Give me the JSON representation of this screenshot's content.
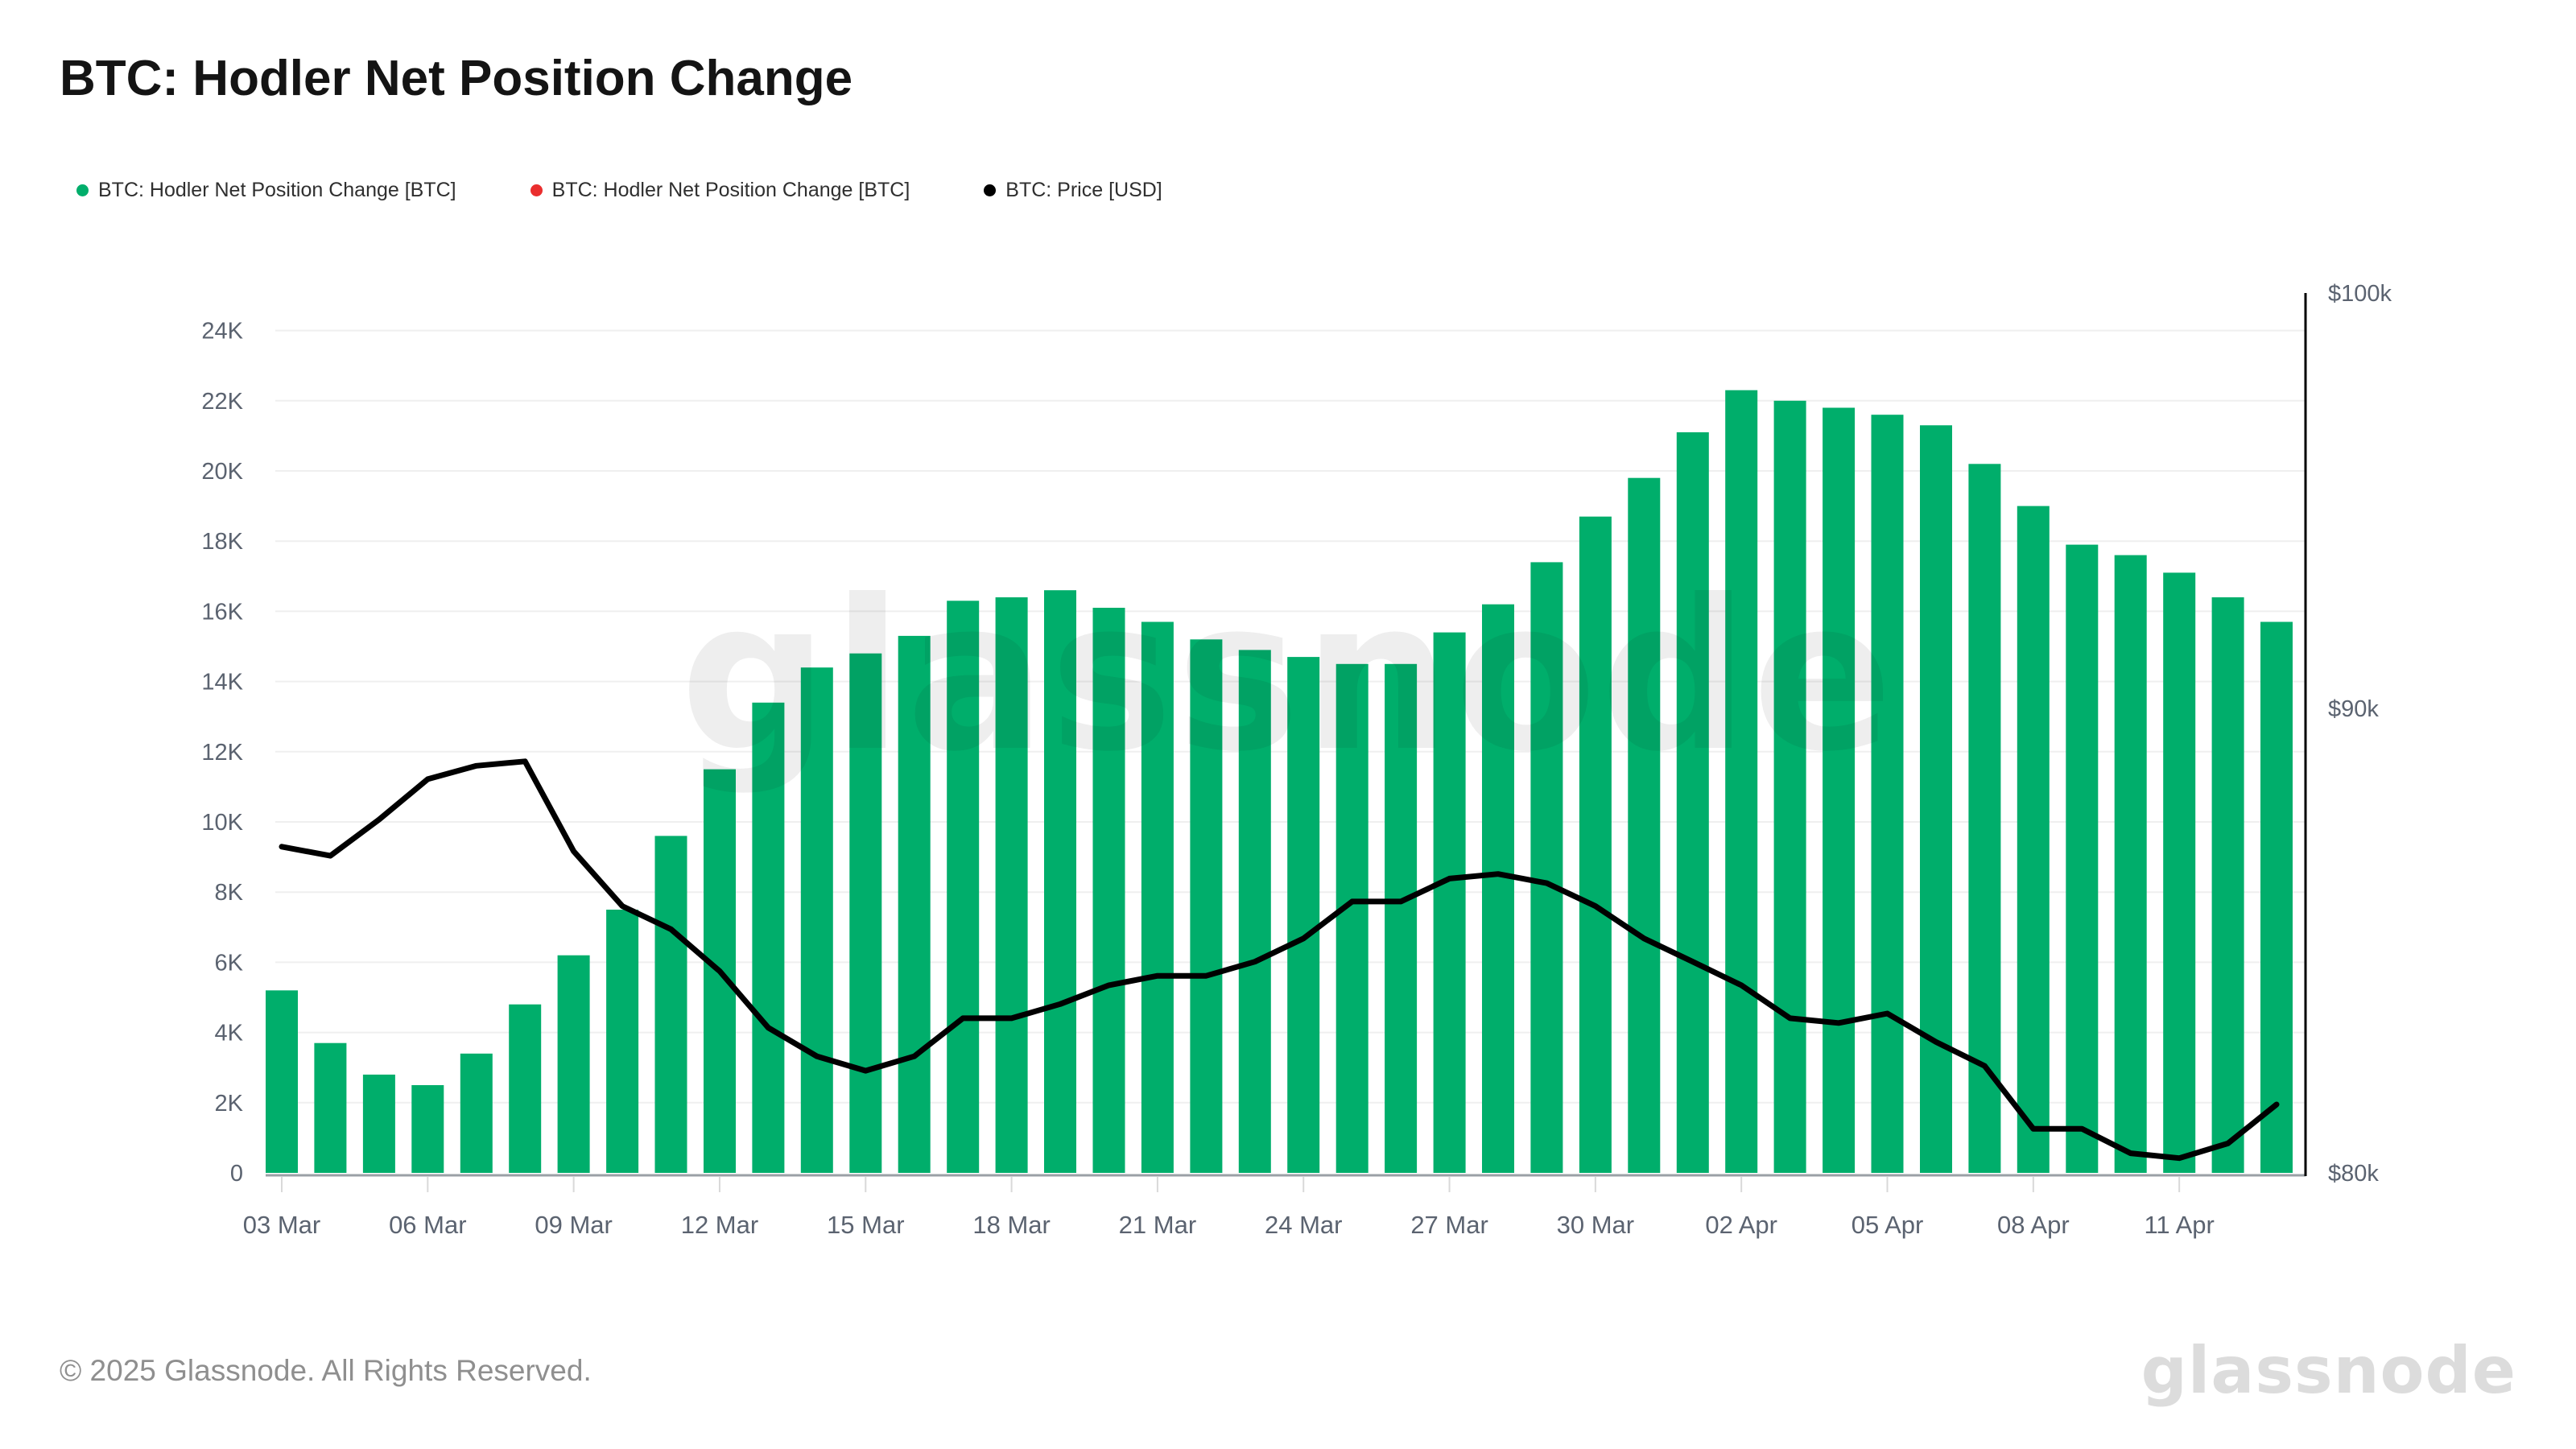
{
  "header": {
    "title": "BTC: Hodler Net Position Change"
  },
  "legend": [
    {
      "label": "BTC: Hodler Net Position Change [BTC]",
      "color": "#00ae6b"
    },
    {
      "label": "BTC: Hodler Net Position Change [BTC]",
      "color": "#ea2e2e"
    },
    {
      "label": "BTC: Price [USD]",
      "color": "#000000"
    }
  ],
  "watermark": "glassnode",
  "footer": {
    "copyright": "© 2025 Glassnode. All Rights Reserved.",
    "brand": "glassnode"
  },
  "chart_data": {
    "type": "bar",
    "title": "BTC: Hodler Net Position Change",
    "grid": true,
    "legend_position": "top-left",
    "categories": [
      "03 Mar",
      "04 Mar",
      "05 Mar",
      "06 Mar",
      "07 Mar",
      "08 Mar",
      "09 Mar",
      "10 Mar",
      "11 Mar",
      "12 Mar",
      "13 Mar",
      "14 Mar",
      "15 Mar",
      "16 Mar",
      "17 Mar",
      "18 Mar",
      "19 Mar",
      "20 Mar",
      "21 Mar",
      "22 Mar",
      "23 Mar",
      "24 Mar",
      "25 Mar",
      "26 Mar",
      "27 Mar",
      "28 Mar",
      "29 Mar",
      "30 Mar",
      "31 Mar",
      "01 Apr",
      "02 Apr",
      "03 Apr",
      "04 Apr",
      "05 Apr",
      "06 Apr",
      "07 Apr",
      "08 Apr",
      "09 Apr",
      "10 Apr",
      "11 Apr",
      "12 Apr",
      "13 Apr"
    ],
    "x_label_every_n_days": 3,
    "series": [
      {
        "name": "BTC: Hodler Net Position Change [BTC]",
        "type": "bar",
        "axis": "left",
        "color": "#00ae6b",
        "values": [
          5200,
          3700,
          2800,
          2500,
          3400,
          4800,
          6200,
          7500,
          9600,
          11500,
          13400,
          14400,
          14800,
          15300,
          16300,
          16400,
          16600,
          16100,
          15700,
          15200,
          14900,
          14700,
          14500,
          14500,
          15400,
          16200,
          17400,
          18700,
          19800,
          21100,
          22300,
          22000,
          21800,
          21600,
          21300,
          20200,
          19000,
          17900,
          17600,
          17100,
          16400,
          15700
        ]
      },
      {
        "name": "BTC: Price [USD]",
        "type": "line",
        "axis": "right",
        "color": "#000000",
        "values": [
          86900,
          86700,
          87500,
          88400,
          88700,
          88800,
          86800,
          85600,
          85100,
          84200,
          83000,
          82400,
          82100,
          82400,
          83200,
          83200,
          83500,
          83900,
          84100,
          84100,
          84400,
          84900,
          85700,
          85700,
          86200,
          86300,
          86100,
          85600,
          84900,
          84400,
          83900,
          83200,
          83100,
          83300,
          82700,
          82200,
          80900,
          80900,
          80400,
          80300,
          80600,
          81400
        ]
      }
    ],
    "left_axis": {
      "ticks": [
        "0",
        "2K",
        "4K",
        "6K",
        "8K",
        "10K",
        "12K",
        "14K",
        "16K",
        "18K",
        "20K",
        "22K",
        "24K"
      ],
      "range": [
        0,
        24000
      ],
      "scale": "linear"
    },
    "right_axis": {
      "ticks": [
        "$80k",
        "$90k",
        "$100k"
      ],
      "tick_values": [
        80000,
        90000,
        100000
      ],
      "range": [
        80000,
        100000
      ],
      "scale": "log"
    }
  }
}
